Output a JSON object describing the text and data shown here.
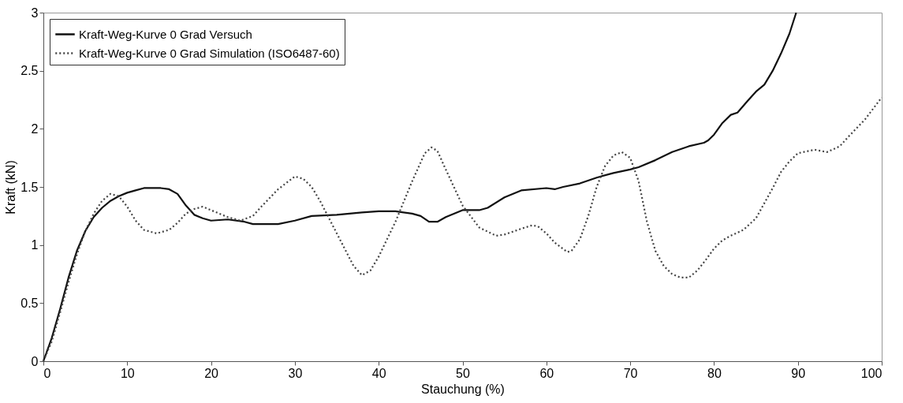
{
  "chart_data": {
    "type": "line",
    "xlabel": "Stauchung (%)",
    "ylabel": "Kraft (kN)",
    "xlim": [
      0,
      100
    ],
    "xticks": [
      0,
      10,
      20,
      30,
      40,
      50,
      60,
      70,
      80,
      90,
      100
    ],
    "ylim": [
      0,
      3
    ],
    "yticks": [
      0,
      0.5,
      1,
      1.5,
      2,
      2.5,
      3
    ],
    "grid": false,
    "legend": "top left",
    "series": [
      {
        "name": "Kraft-Weg-Kurve 0 Grad Versuch",
        "color": "#111111",
        "line_style": "solid",
        "x": [
          0,
          1,
          2,
          3,
          4,
          5,
          6,
          7,
          8,
          9,
          10,
          11,
          12,
          13,
          14,
          15,
          16,
          17,
          18,
          19,
          20,
          22,
          24,
          25,
          28,
          30,
          32,
          35,
          38,
          40,
          42,
          44,
          45,
          46,
          47,
          48,
          50,
          52,
          53,
          55,
          57,
          60,
          61,
          62,
          64,
          66,
          68,
          70,
          71,
          73,
          75,
          77,
          78.8,
          79.3,
          80,
          81,
          82,
          82.8,
          84,
          85,
          86,
          87,
          88,
          89,
          89.8
        ],
        "values": [
          0,
          0.2,
          0.45,
          0.72,
          0.95,
          1.12,
          1.24,
          1.32,
          1.38,
          1.42,
          1.45,
          1.47,
          1.49,
          1.49,
          1.49,
          1.48,
          1.44,
          1.34,
          1.26,
          1.23,
          1.21,
          1.22,
          1.2,
          1.18,
          1.18,
          1.21,
          1.25,
          1.26,
          1.28,
          1.29,
          1.29,
          1.27,
          1.25,
          1.2,
          1.2,
          1.24,
          1.3,
          1.3,
          1.32,
          1.41,
          1.47,
          1.49,
          1.48,
          1.5,
          1.53,
          1.58,
          1.62,
          1.65,
          1.67,
          1.73,
          1.8,
          1.85,
          1.88,
          1.9,
          1.95,
          2.05,
          2.12,
          2.14,
          2.24,
          2.32,
          2.38,
          2.5,
          2.65,
          2.82,
          3.0
        ]
      },
      {
        "name": "Kraft-Weg-Kurve 0 Grad Simulation (ISO6487-60)",
        "color": "#444444",
        "line_style": "dotted",
        "x": [
          0,
          1,
          2,
          3,
          4,
          5,
          6,
          7,
          8,
          9,
          10,
          11,
          12,
          13.5,
          15,
          16,
          17,
          18,
          19,
          20,
          22,
          23.5,
          25,
          26,
          28,
          30,
          31,
          32,
          33,
          35,
          37,
          38,
          39,
          40,
          42,
          44,
          45.5,
          46.3,
          47,
          48,
          50,
          52,
          54,
          55,
          57,
          58.3,
          59,
          60,
          61,
          62.5,
          63,
          64,
          65,
          66,
          67,
          68,
          69,
          70,
          71,
          72,
          73,
          74,
          75,
          76,
          77,
          78,
          79,
          80,
          81,
          82,
          83.5,
          85,
          86,
          87,
          88,
          89,
          90,
          92,
          93.5,
          95,
          96,
          98,
          100
        ],
        "values": [
          0,
          0.17,
          0.42,
          0.68,
          0.92,
          1.12,
          1.27,
          1.38,
          1.44,
          1.42,
          1.33,
          1.21,
          1.13,
          1.1,
          1.13,
          1.19,
          1.27,
          1.31,
          1.33,
          1.3,
          1.24,
          1.21,
          1.25,
          1.33,
          1.48,
          1.59,
          1.57,
          1.5,
          1.38,
          1.1,
          0.82,
          0.74,
          0.78,
          0.9,
          1.2,
          1.55,
          1.79,
          1.84,
          1.81,
          1.65,
          1.34,
          1.15,
          1.08,
          1.09,
          1.14,
          1.17,
          1.16,
          1.1,
          1.02,
          0.94,
          0.95,
          1.05,
          1.25,
          1.5,
          1.68,
          1.77,
          1.8,
          1.75,
          1.55,
          1.2,
          0.95,
          0.82,
          0.75,
          0.72,
          0.72,
          0.78,
          0.87,
          0.97,
          1.04,
          1.08,
          1.13,
          1.23,
          1.36,
          1.49,
          1.63,
          1.72,
          1.79,
          1.82,
          1.8,
          1.85,
          1.93,
          2.08,
          2.27
        ]
      }
    ]
  }
}
